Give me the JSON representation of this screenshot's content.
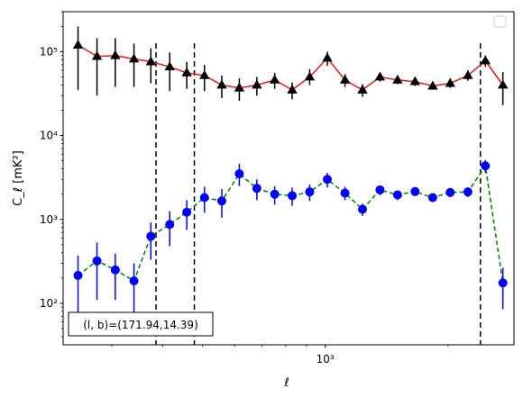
{
  "chart_data": {
    "type": "scatter",
    "title": "",
    "xlabel": "ℓ",
    "ylabel": "C_ℓ [mK²]",
    "xscale": "log",
    "yscale": "log",
    "xlim": [
      228,
      2900
    ],
    "ylim": [
      32,
      300000
    ],
    "x_tick_labels": [
      {
        "value": 1000,
        "label": "10³"
      }
    ],
    "y_tick_labels": [
      {
        "value": 100,
        "label": "10²"
      },
      {
        "value": 1000,
        "label": "10³"
      },
      {
        "value": 10000,
        "label": "10⁴"
      },
      {
        "value": 100000,
        "label": "10⁵"
      }
    ],
    "grid": false,
    "legend": {
      "placement": "top-right",
      "entries": []
    },
    "vlines": [
      385,
      478,
      2400
    ],
    "annotation": "(l, b)=(171.94,14.39)",
    "series": [
      {
        "marker": "triangle",
        "marker_color": "#000000",
        "line_color": "#e41a1c",
        "line_style": "solid",
        "errorbar_color": "#000000",
        "points": [
          {
            "x": 248,
            "y": 120000,
            "lo": 35000,
            "hi": 200000
          },
          {
            "x": 276,
            "y": 88000,
            "lo": 30000,
            "hi": 145000
          },
          {
            "x": 306,
            "y": 90000,
            "lo": 38000,
            "hi": 145000
          },
          {
            "x": 340,
            "y": 82000,
            "lo": 38000,
            "hi": 125000
          },
          {
            "x": 374,
            "y": 76000,
            "lo": 42000,
            "hi": 110000
          },
          {
            "x": 416,
            "y": 66000,
            "lo": 34000,
            "hi": 98000
          },
          {
            "x": 458,
            "y": 56000,
            "lo": 36000,
            "hi": 76000
          },
          {
            "x": 506,
            "y": 52000,
            "lo": 34000,
            "hi": 70000
          },
          {
            "x": 558,
            "y": 40000,
            "lo": 28000,
            "hi": 52000
          },
          {
            "x": 616,
            "y": 37000,
            "lo": 26000,
            "hi": 48000
          },
          {
            "x": 680,
            "y": 40000,
            "lo": 30000,
            "hi": 50000
          },
          {
            "x": 752,
            "y": 46000,
            "lo": 36000,
            "hi": 56000
          },
          {
            "x": 830,
            "y": 35000,
            "lo": 27000,
            "hi": 43000
          },
          {
            "x": 916,
            "y": 50000,
            "lo": 40000,
            "hi": 62000
          },
          {
            "x": 1012,
            "y": 84000,
            "lo": 68000,
            "hi": 100000
          },
          {
            "x": 1118,
            "y": 46000,
            "lo": 38000,
            "hi": 54000
          },
          {
            "x": 1234,
            "y": 35000,
            "lo": 29000,
            "hi": 41000
          },
          {
            "x": 1362,
            "y": 50000,
            "lo": 44000,
            "hi": 56000
          },
          {
            "x": 1504,
            "y": 46000,
            "lo": 41000,
            "hi": 51000
          },
          {
            "x": 1660,
            "y": 44000,
            "lo": 39000,
            "hi": 49000
          },
          {
            "x": 1834,
            "y": 39000,
            "lo": 35000,
            "hi": 43000
          },
          {
            "x": 2024,
            "y": 42000,
            "lo": 37000,
            "hi": 47000
          },
          {
            "x": 2236,
            "y": 52000,
            "lo": 45000,
            "hi": 60000
          },
          {
            "x": 2468,
            "y": 78000,
            "lo": 66000,
            "hi": 90000
          },
          {
            "x": 2724,
            "y": 40000,
            "lo": 23000,
            "hi": 57000
          }
        ]
      },
      {
        "marker": "circle",
        "marker_color": "#0000ff",
        "line_color": "#008000",
        "line_style": "dashed",
        "errorbar_color": "#0000ff",
        "points": [
          {
            "x": 248,
            "y": 215,
            "lo": 60,
            "hi": 370
          },
          {
            "x": 276,
            "y": 320,
            "lo": 110,
            "hi": 530
          },
          {
            "x": 306,
            "y": 250,
            "lo": 110,
            "hi": 390
          },
          {
            "x": 340,
            "y": 185,
            "lo": 70,
            "hi": 300
          },
          {
            "x": 374,
            "y": 630,
            "lo": 330,
            "hi": 920
          },
          {
            "x": 416,
            "y": 870,
            "lo": 480,
            "hi": 1250
          },
          {
            "x": 458,
            "y": 1220,
            "lo": 750,
            "hi": 1700
          },
          {
            "x": 506,
            "y": 1820,
            "lo": 1200,
            "hi": 2450
          },
          {
            "x": 558,
            "y": 1660,
            "lo": 1050,
            "hi": 2300
          },
          {
            "x": 616,
            "y": 3500,
            "lo": 2500,
            "hi": 4600
          },
          {
            "x": 680,
            "y": 2350,
            "lo": 1700,
            "hi": 3000
          },
          {
            "x": 752,
            "y": 2000,
            "lo": 1500,
            "hi": 2500
          },
          {
            "x": 830,
            "y": 1920,
            "lo": 1450,
            "hi": 2400
          },
          {
            "x": 916,
            "y": 2130,
            "lo": 1650,
            "hi": 2600
          },
          {
            "x": 1012,
            "y": 3000,
            "lo": 2400,
            "hi": 3600
          },
          {
            "x": 1118,
            "y": 2060,
            "lo": 1700,
            "hi": 2450
          },
          {
            "x": 1234,
            "y": 1320,
            "lo": 1100,
            "hi": 1540
          },
          {
            "x": 1362,
            "y": 2250,
            "lo": 1950,
            "hi": 2550
          },
          {
            "x": 1504,
            "y": 1960,
            "lo": 1700,
            "hi": 2220
          },
          {
            "x": 1660,
            "y": 2150,
            "lo": 1900,
            "hi": 2400
          },
          {
            "x": 1834,
            "y": 1820,
            "lo": 1620,
            "hi": 2020
          },
          {
            "x": 2024,
            "y": 2100,
            "lo": 1850,
            "hi": 2350
          },
          {
            "x": 2236,
            "y": 2130,
            "lo": 1850,
            "hi": 2410
          },
          {
            "x": 2468,
            "y": 4350,
            "lo": 3600,
            "hi": 5100
          },
          {
            "x": 2724,
            "y": 175,
            "lo": 85,
            "hi": 265
          }
        ]
      }
    ]
  }
}
